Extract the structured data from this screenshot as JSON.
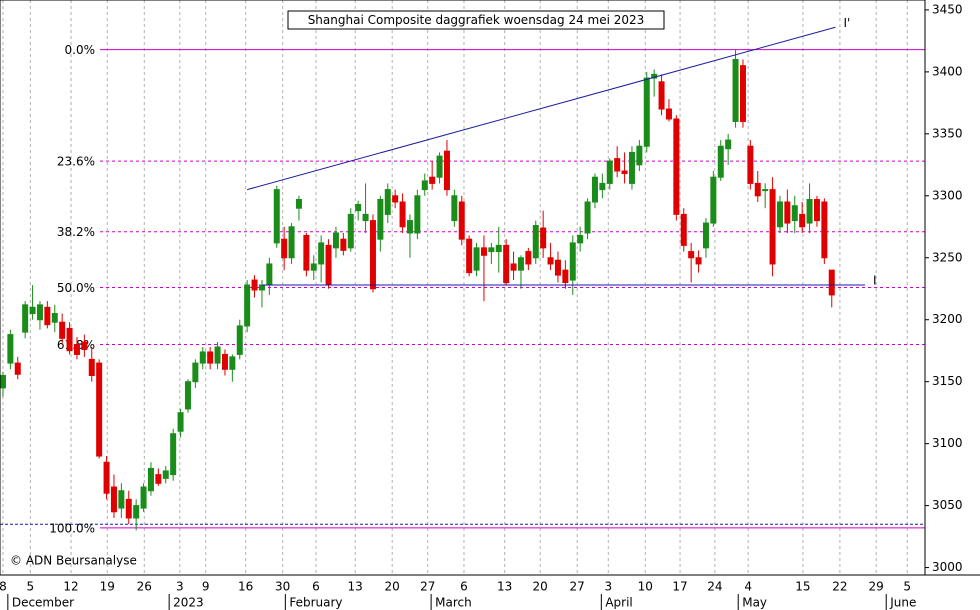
{
  "chart_data": {
    "type": "candlestick",
    "title": "Shanghai Composite daggrafiek woensdag 24 mei 2023",
    "copyright": "© ADN Beursanalyse",
    "up_color": "#1a8c1a",
    "down_color": "#e00000",
    "ylim": [
      2994,
      3458
    ],
    "yticks": [
      3000,
      3050,
      3100,
      3150,
      3200,
      3250,
      3300,
      3350,
      3400,
      3450
    ],
    "xlim": [
      -0.4,
      124.6
    ],
    "xticks": [
      {
        "value": 0,
        "label": "8"
      },
      {
        "value": 3.7,
        "label": "5"
      },
      {
        "value": 9.2,
        "label": "12"
      },
      {
        "value": 14.1,
        "label": "19"
      },
      {
        "value": 19.1,
        "label": "26"
      },
      {
        "value": 23.9,
        "label": "3"
      },
      {
        "value": 27.4,
        "label": "9"
      },
      {
        "value": 32.8,
        "label": "16"
      },
      {
        "value": 37.8,
        "label": "30"
      },
      {
        "value": 42.3,
        "label": "6"
      },
      {
        "value": 47.6,
        "label": "13"
      },
      {
        "value": 52.6,
        "label": "20"
      },
      {
        "value": 57.4,
        "label": "27"
      },
      {
        "value": 62.3,
        "label": "6"
      },
      {
        "value": 67.8,
        "label": "13"
      },
      {
        "value": 72.6,
        "label": "20"
      },
      {
        "value": 77.6,
        "label": "27"
      },
      {
        "value": 81.8,
        "label": "3"
      },
      {
        "value": 86.8,
        "label": "10"
      },
      {
        "value": 91.5,
        "label": "17"
      },
      {
        "value": 96.2,
        "label": "24"
      },
      {
        "value": 100.7,
        "label": "4"
      },
      {
        "value": 108.1,
        "label": "15"
      },
      {
        "value": 113.1,
        "label": "22"
      },
      {
        "value": 118,
        "label": "29"
      },
      {
        "value": 122.2,
        "label": "5"
      }
    ],
    "months": [
      {
        "value": 1.2,
        "label": "December"
      },
      {
        "value": 23,
        "label": "2023"
      },
      {
        "value": 38.7,
        "label": "February"
      },
      {
        "value": 58.4,
        "label": "March"
      },
      {
        "value": 81.4,
        "label": "April"
      },
      {
        "value": 99.9,
        "label": "May"
      },
      {
        "value": 119.9,
        "label": "June"
      }
    ],
    "fib_color": "#cc00cc",
    "fib_levels": [
      {
        "value": 3418,
        "label": "0.0%"
      },
      {
        "value": 3328,
        "label": "23.6%"
      },
      {
        "value": 3271,
        "label": "38.2%"
      },
      {
        "value": 3226,
        "label": "50.0%"
      },
      {
        "value": 3180,
        "label": "61.8%"
      },
      {
        "value": 3032,
        "label": "100.0%"
      }
    ],
    "trend_color": "#1a1aa0",
    "trend_lines": [
      {
        "label": "I'",
        "x": [
          33,
          112.5
        ],
        "y": [
          3305,
          3436
        ]
      },
      {
        "label": "I",
        "x": [
          35,
          116.5
        ],
        "y": [
          3228,
          3228
        ]
      }
    ],
    "support": 3035,
    "candles": [
      [
        3145,
        3158,
        3138,
        3155
      ],
      [
        3165,
        3192,
        3160,
        3188
      ],
      [
        3165,
        3170,
        3152,
        3156
      ],
      [
        3190,
        3215,
        3185,
        3212
      ],
      [
        3205,
        3228,
        3200,
        3210
      ],
      [
        3200,
        3215,
        3192,
        3212
      ],
      [
        3210,
        3215,
        3193,
        3196
      ],
      [
        3198,
        3212,
        3190,
        3205
      ],
      [
        3198,
        3205,
        3180,
        3185
      ],
      [
        3193,
        3198,
        3172,
        3175
      ],
      [
        3180,
        3186,
        3168,
        3172
      ],
      [
        3182,
        3188,
        3170,
        3176
      ],
      [
        3168,
        3178,
        3150,
        3155
      ],
      [
        3165,
        3168,
        3088,
        3090
      ],
      [
        3085,
        3090,
        3055,
        3060
      ],
      [
        3065,
        3075,
        3040,
        3045
      ],
      [
        3048,
        3068,
        3040,
        3062
      ],
      [
        3055,
        3062,
        3035,
        3040
      ],
      [
        3040,
        3055,
        3030,
        3050
      ],
      [
        3048,
        3068,
        3045,
        3065
      ],
      [
        3062,
        3085,
        3058,
        3080
      ],
      [
        3075,
        3080,
        3066,
        3068
      ],
      [
        3072,
        3082,
        3068,
        3078
      ],
      [
        3075,
        3112,
        3070,
        3108
      ],
      [
        3110,
        3128,
        3105,
        3125
      ],
      [
        3128,
        3152,
        3125,
        3150
      ],
      [
        3150,
        3168,
        3145,
        3165
      ],
      [
        3165,
        3178,
        3160,
        3174
      ],
      [
        3174,
        3178,
        3160,
        3165
      ],
      [
        3165,
        3182,
        3160,
        3178
      ],
      [
        3172,
        3176,
        3155,
        3160
      ],
      [
        3160,
        3172,
        3150,
        3170
      ],
      [
        3172,
        3200,
        3168,
        3195
      ],
      [
        3195,
        3232,
        3190,
        3228
      ],
      [
        3232,
        3236,
        3218,
        3224
      ],
      [
        3224,
        3232,
        3210,
        3228
      ],
      [
        3228,
        3250,
        3220,
        3245
      ],
      [
        3262,
        3308,
        3258,
        3305
      ],
      [
        3265,
        3275,
        3240,
        3250
      ],
      [
        3250,
        3278,
        3245,
        3275
      ],
      [
        3290,
        3300,
        3280,
        3297
      ],
      [
        3268,
        3270,
        3235,
        3240
      ],
      [
        3240,
        3252,
        3232,
        3245
      ],
      [
        3245,
        3268,
        3230,
        3262
      ],
      [
        3260,
        3265,
        3225,
        3228
      ],
      [
        3258,
        3275,
        3250,
        3270
      ],
      [
        3265,
        3270,
        3252,
        3256
      ],
      [
        3258,
        3290,
        3255,
        3285
      ],
      [
        3288,
        3296,
        3280,
        3293
      ],
      [
        3280,
        3310,
        3270,
        3285
      ],
      [
        3280,
        3285,
        3222,
        3225
      ],
      [
        3265,
        3300,
        3255,
        3297
      ],
      [
        3285,
        3310,
        3278,
        3305
      ],
      [
        3300,
        3305,
        3290,
        3295
      ],
      [
        3295,
        3302,
        3270,
        3275
      ],
      [
        3270,
        3285,
        3250,
        3280
      ],
      [
        3270,
        3305,
        3265,
        3300
      ],
      [
        3305,
        3318,
        3300,
        3312
      ],
      [
        3315,
        3328,
        3305,
        3310
      ],
      [
        3315,
        3335,
        3310,
        3332
      ],
      [
        3336,
        3345,
        3300,
        3305
      ],
      [
        3280,
        3305,
        3275,
        3300
      ],
      [
        3295,
        3300,
        3260,
        3265
      ],
      [
        3265,
        3268,
        3235,
        3238
      ],
      [
        3240,
        3262,
        3235,
        3258
      ],
      [
        3258,
        3268,
        3215,
        3252
      ],
      [
        3255,
        3262,
        3245,
        3258
      ],
      [
        3255,
        3275,
        3238,
        3260
      ],
      [
        3260,
        3265,
        3228,
        3230
      ],
      [
        3245,
        3255,
        3232,
        3240
      ],
      [
        3240,
        3252,
        3225,
        3250
      ],
      [
        3255,
        3258,
        3240,
        3245
      ],
      [
        3250,
        3280,
        3245,
        3276
      ],
      [
        3274,
        3288,
        3250,
        3258
      ],
      [
        3250,
        3262,
        3240,
        3245
      ],
      [
        3248,
        3255,
        3230,
        3236
      ],
      [
        3240,
        3248,
        3225,
        3230
      ],
      [
        3232,
        3268,
        3220,
        3262
      ],
      [
        3262,
        3275,
        3255,
        3268
      ],
      [
        3270,
        3298,
        3265,
        3295
      ],
      [
        3295,
        3318,
        3290,
        3315
      ],
      [
        3305,
        3318,
        3298,
        3310
      ],
      [
        3310,
        3330,
        3305,
        3328
      ],
      [
        3330,
        3340,
        3315,
        3320
      ],
      [
        3320,
        3335,
        3310,
        3318
      ],
      [
        3310,
        3340,
        3305,
        3335
      ],
      [
        3325,
        3345,
        3320,
        3340
      ],
      [
        3340,
        3400,
        3335,
        3395
      ],
      [
        3395,
        3402,
        3380,
        3398
      ],
      [
        3392,
        3398,
        3365,
        3370
      ],
      [
        3370,
        3378,
        3360,
        3362
      ],
      [
        3362,
        3365,
        3280,
        3285
      ],
      [
        3285,
        3290,
        3255,
        3260
      ],
      [
        3255,
        3262,
        3230,
        3250
      ],
      [
        3250,
        3256,
        3238,
        3245
      ],
      [
        3258,
        3282,
        3250,
        3278
      ],
      [
        3278,
        3320,
        3275,
        3315
      ],
      [
        3315,
        3345,
        3312,
        3340
      ],
      [
        3338,
        3350,
        3325,
        3345
      ],
      [
        3360,
        3418,
        3355,
        3410
      ],
      [
        3405,
        3410,
        3355,
        3360
      ],
      [
        3340,
        3345,
        3305,
        3310
      ],
      [
        3310,
        3320,
        3295,
        3300
      ],
      [
        3305,
        3310,
        3290,
        3305
      ],
      [
        3305,
        3315,
        3235,
        3245
      ],
      [
        3275,
        3300,
        3270,
        3295
      ],
      [
        3295,
        3305,
        3270,
        3278
      ],
      [
        3280,
        3300,
        3270,
        3292
      ],
      [
        3285,
        3295,
        3270,
        3275
      ],
      [
        3278,
        3310,
        3270,
        3297
      ],
      [
        3297,
        3300,
        3275,
        3280
      ],
      [
        3295,
        3298,
        3245,
        3250
      ],
      [
        3240,
        3240,
        3210,
        3220
      ]
    ]
  }
}
